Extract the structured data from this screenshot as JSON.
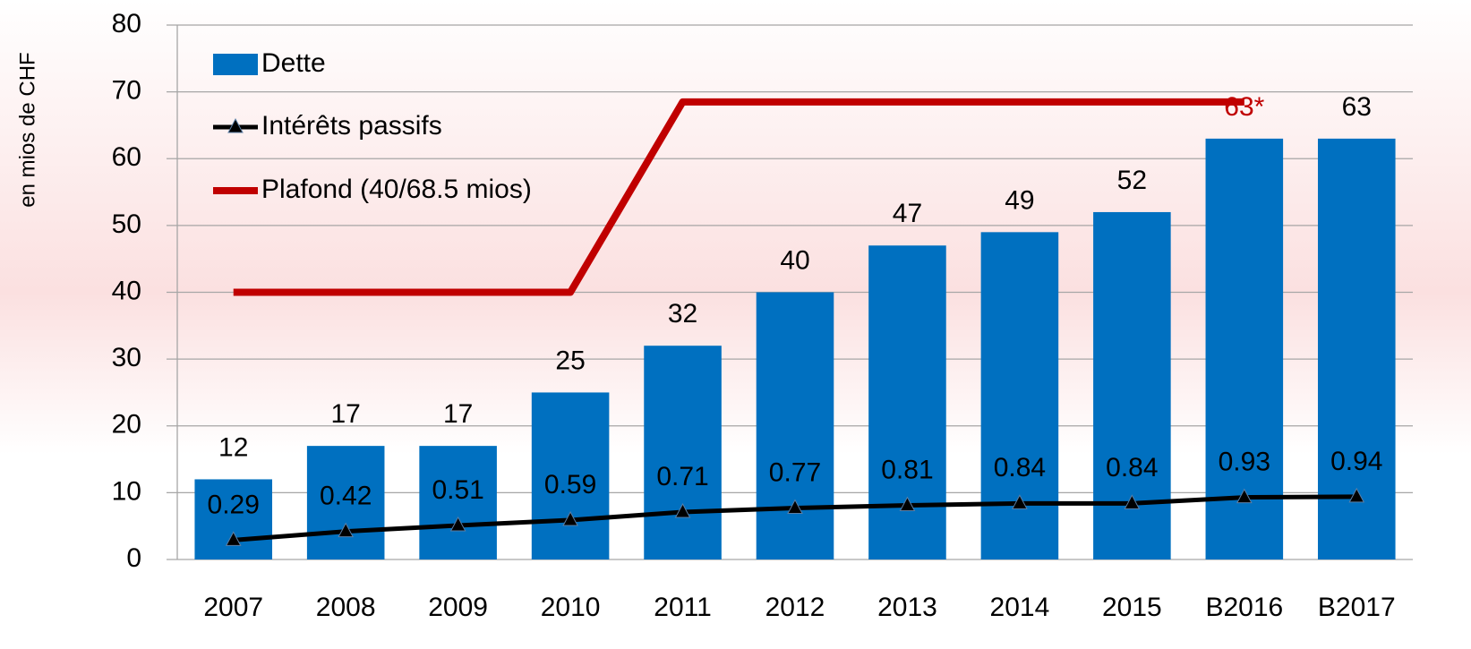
{
  "chart_data": {
    "type": "bar",
    "y_label": "en mios de CHF",
    "categories": [
      "2007",
      "2008",
      "2009",
      "2010",
      "2011",
      "2012",
      "2013",
      "2014",
      "2015",
      "B2016",
      "B2017"
    ],
    "series": [
      {
        "name": "Dette",
        "type": "bar",
        "color": "#0070c0",
        "values": [
          12,
          17,
          17,
          25,
          32,
          40,
          47,
          49,
          52,
          63,
          63
        ],
        "value_labels": [
          "12",
          "17",
          "17",
          "25",
          "32",
          "40",
          "47",
          "49",
          "52",
          "63*",
          "63"
        ]
      },
      {
        "name": "Intérêts passifs",
        "type": "line",
        "axis": "y2",
        "color": "#000000",
        "values": [
          0.29,
          0.42,
          0.51,
          0.59,
          0.71,
          0.77,
          0.81,
          0.84,
          0.84,
          0.93,
          0.94
        ]
      },
      {
        "name": "Plafond (40/68.5 mios)",
        "type": "line",
        "color": "#c00000",
        "values": [
          40,
          40,
          40,
          40,
          68.5,
          68.5,
          68.5,
          68.5,
          68.5,
          68.5,
          null
        ]
      }
    ],
    "ylim": [
      0,
      80
    ],
    "yticks": [
      0,
      10,
      20,
      30,
      40,
      50,
      60,
      70,
      80
    ],
    "y2lim": [
      0,
      8
    ],
    "grid": true,
    "legend": "top-left"
  }
}
